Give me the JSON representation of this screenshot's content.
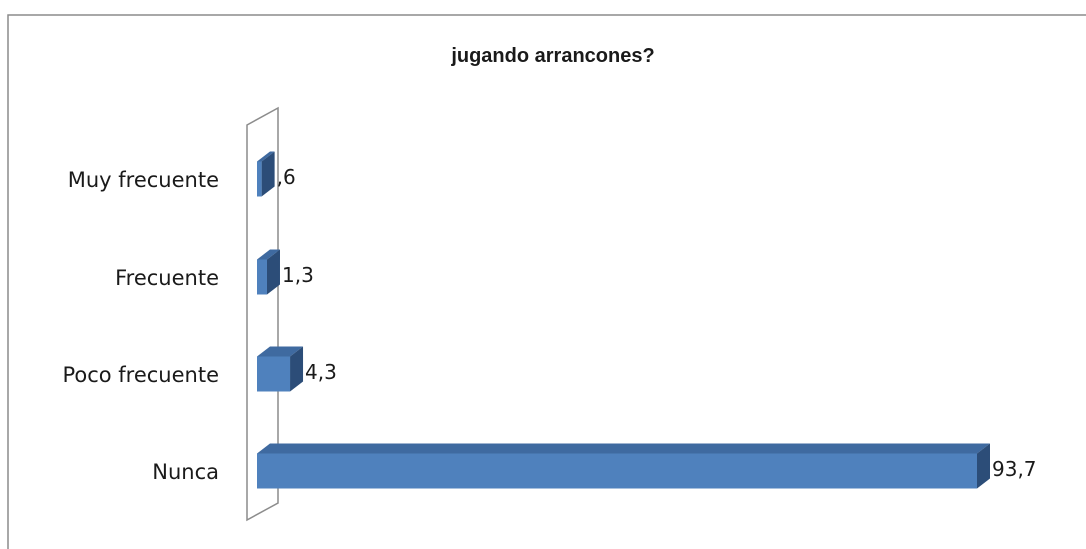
{
  "chart_data": {
    "type": "bar",
    "orientation": "horizontal",
    "title": "jugando arrancones?",
    "categories": [
      "Muy frecuente",
      "Frecuente",
      "Poco frecuente",
      "Nunca"
    ],
    "values": [
      0.6,
      1.3,
      4.3,
      93.7
    ],
    "value_labels": [
      ",6",
      "1,3",
      "4,3",
      "93,7"
    ],
    "xlim": [
      0,
      100
    ],
    "grid": false,
    "legend": "none",
    "colors": {
      "bar_front": "#4f81bd",
      "bar_top": "#3f6aa0",
      "bar_side": "#2c4d78",
      "frame": "#7f7f7f"
    }
  }
}
